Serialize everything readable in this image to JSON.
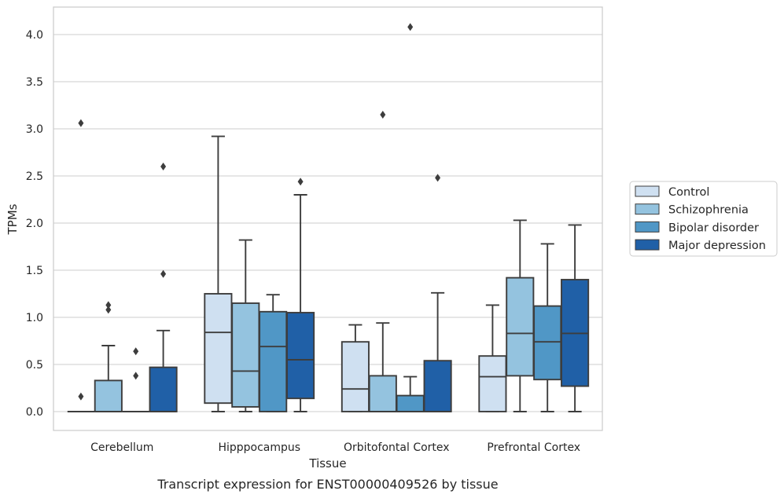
{
  "caption": "Transcript expression for ENST00000409526 by tissue",
  "chart_data": {
    "type": "boxplot",
    "xlabel": "Tissue",
    "ylabel": "TPMs",
    "ylim": [
      -0.2,
      4.3
    ],
    "yticks": [
      "0.0",
      "0.5",
      "1.0",
      "1.5",
      "2.0",
      "2.5",
      "3.0",
      "3.5",
      "4.0"
    ],
    "grid": "horizontal",
    "legend_position": "right",
    "categories": [
      "Cerebellum",
      "Hipppocampus",
      "Orbitofontal Cortex",
      "Prefrontal Cortex"
    ],
    "series": [
      {
        "name": "Control",
        "color": "#cfe0f1",
        "boxes": [
          {
            "whislo": 0,
            "q1": 0,
            "med": 0,
            "q3": 0,
            "whishi": 0,
            "fliers": [
              0.16,
              3.06
            ]
          },
          {
            "whislo": 0,
            "q1": 0.09,
            "med": 0.84,
            "q3": 1.25,
            "whishi": 2.92,
            "fliers": []
          },
          {
            "whislo": 0,
            "q1": 0,
            "med": 0.24,
            "q3": 0.74,
            "whishi": 0.92,
            "fliers": []
          },
          {
            "whislo": 0,
            "q1": 0,
            "med": 0.37,
            "q3": 0.59,
            "whishi": 1.13,
            "fliers": []
          }
        ]
      },
      {
        "name": "Schizophrenia",
        "color": "#94c3df",
        "boxes": [
          {
            "whislo": 0,
            "q1": 0,
            "med": 0,
            "q3": 0.33,
            "whishi": 0.7,
            "fliers": [
              1.08,
              1.13
            ]
          },
          {
            "whislo": 0,
            "q1": 0.05,
            "med": 0.43,
            "q3": 1.15,
            "whishi": 1.82,
            "fliers": []
          },
          {
            "whislo": 0,
            "q1": 0,
            "med": 0,
            "q3": 0.38,
            "whishi": 0.94,
            "fliers": [
              3.15
            ]
          },
          {
            "whislo": 0,
            "q1": 0.38,
            "med": 0.83,
            "q3": 1.42,
            "whishi": 2.03,
            "fliers": []
          }
        ]
      },
      {
        "name": "Bipolar disorder",
        "color": "#5097c6",
        "boxes": [
          {
            "whislo": 0,
            "q1": 0,
            "med": 0,
            "q3": 0,
            "whishi": 0,
            "fliers": [
              0.38,
              0.64
            ]
          },
          {
            "whislo": 0,
            "q1": 0,
            "med": 0.69,
            "q3": 1.06,
            "whishi": 1.24,
            "fliers": []
          },
          {
            "whislo": 0,
            "q1": 0,
            "med": 0,
            "q3": 0.17,
            "whishi": 0.37,
            "fliers": [
              4.08
            ]
          },
          {
            "whislo": 0,
            "q1": 0.34,
            "med": 0.74,
            "q3": 1.12,
            "whishi": 1.78,
            "fliers": []
          }
        ]
      },
      {
        "name": "Major depression",
        "color": "#2060a7",
        "boxes": [
          {
            "whislo": 0,
            "q1": 0,
            "med": 0,
            "q3": 0.47,
            "whishi": 0.86,
            "fliers": [
              1.46,
              2.6
            ]
          },
          {
            "whislo": 0,
            "q1": 0.14,
            "med": 0.55,
            "q3": 1.05,
            "whishi": 2.3,
            "fliers": [
              2.44
            ]
          },
          {
            "whislo": 0,
            "q1": 0,
            "med": 0,
            "q3": 0.54,
            "whishi": 1.26,
            "fliers": [
              2.48
            ]
          },
          {
            "whislo": 0,
            "q1": 0.27,
            "med": 0.83,
            "q3": 1.4,
            "whishi": 1.98,
            "fliers": []
          }
        ]
      }
    ]
  }
}
